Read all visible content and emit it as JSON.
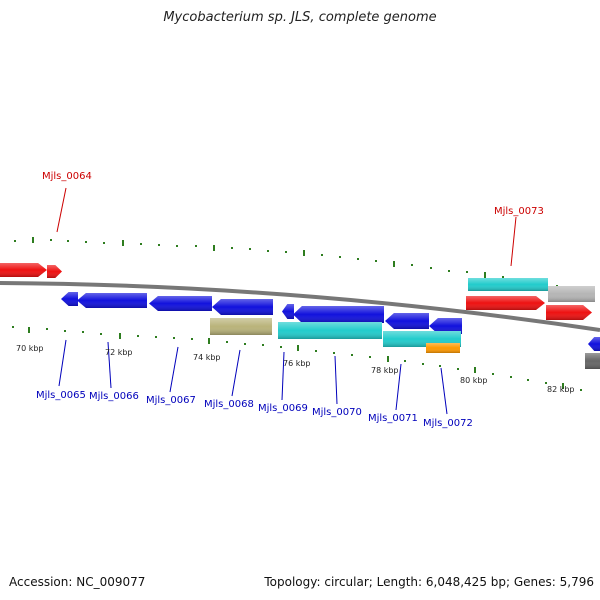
{
  "title": "Mycobacterium sp. JLS, complete genome",
  "footer": {
    "accession": "Accession: NC_009077",
    "stats": "Topology: circular; Length: 6,048,425 bp; Genes: 5,796"
  },
  "colors": {
    "backbone": "#777777",
    "tick": "#2e7d1f",
    "label_red": "#cc0000",
    "label_blue": "#0000bb",
    "gene_red": "#ee1111",
    "gene_blue": "#1111dd",
    "gene_cyan": "#22cccc",
    "gene_olive": "#b9b37a",
    "gene_gray": "#b5b5b5",
    "gene_orange": "#ff9900",
    "gene_darkgray": "#666666"
  },
  "kbp_labels": [
    "70 kbp",
    "72 kbp",
    "74 kbp",
    "76 kbp",
    "78 kbp",
    "80 kbp",
    "82 kbp"
  ],
  "gene_labels": [
    {
      "text": "Mjls_0064",
      "color": "red"
    },
    {
      "text": "Mjls_0073",
      "color": "red"
    },
    {
      "text": "Mjls_0065",
      "color": "blue"
    },
    {
      "text": "Mjls_0066",
      "color": "blue"
    },
    {
      "text": "Mjls_0067",
      "color": "blue"
    },
    {
      "text": "Mjls_0068",
      "color": "blue"
    },
    {
      "text": "Mjls_0069",
      "color": "blue"
    },
    {
      "text": "Mjls_0070",
      "color": "blue"
    },
    {
      "text": "Mjls_0071",
      "color": "blue"
    },
    {
      "text": "Mjls_0072",
      "color": "blue"
    }
  ]
}
